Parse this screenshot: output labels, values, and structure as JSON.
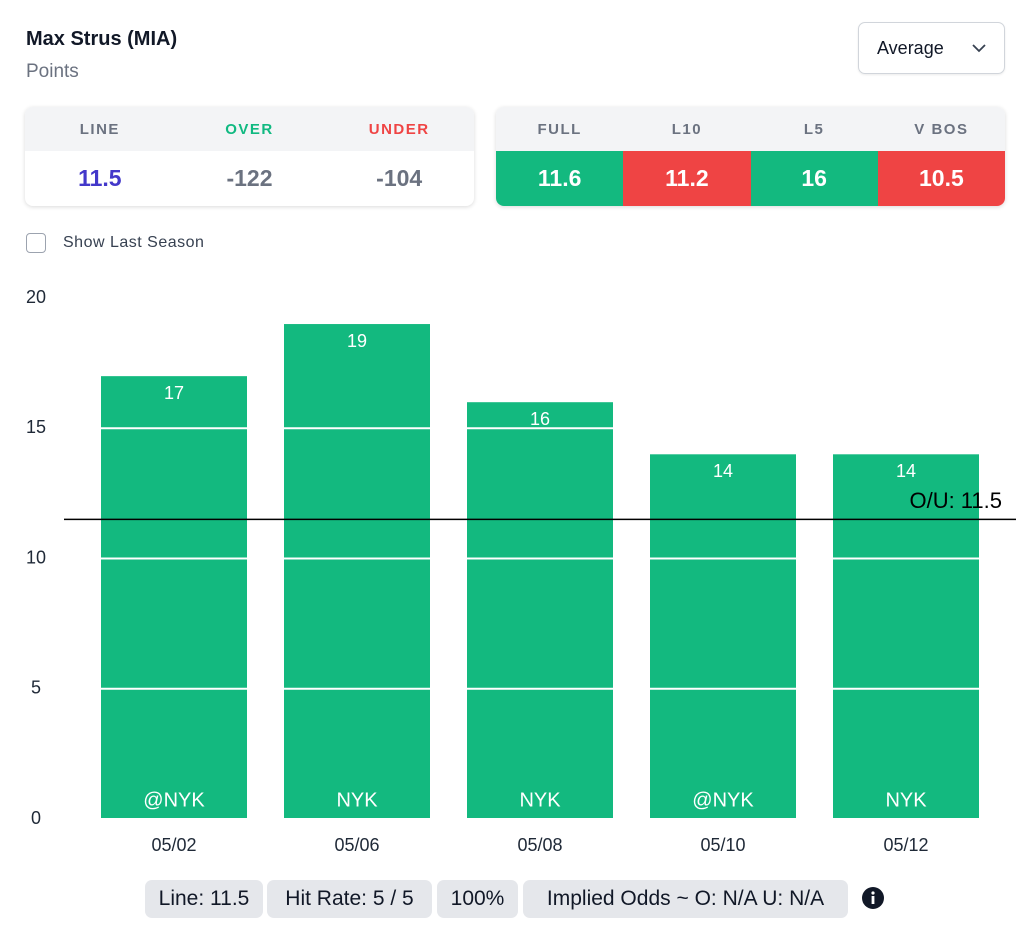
{
  "header": {
    "title": "Max Strus (MIA)",
    "subtitle": "Points",
    "dropdown": "Average"
  },
  "line_table": {
    "headers": [
      "LINE",
      "OVER",
      "UNDER"
    ],
    "header_colors": [
      "#6b7280",
      "#10b981",
      "#ef4444"
    ],
    "values": [
      "11.5",
      "-122",
      "-104"
    ],
    "value_colors": [
      "#4338ca",
      "#6b7280",
      "#6b7280"
    ]
  },
  "stats_table": {
    "headers": [
      "FULL",
      "L10",
      "L5",
      "V BOS"
    ],
    "values": [
      "11.6",
      "11.2",
      "16",
      "10.5"
    ],
    "cell_colors": [
      "#13b97f",
      "#ef4444",
      "#13b97f",
      "#ef4444"
    ]
  },
  "checkbox": {
    "label": "Show Last Season"
  },
  "chart_data": {
    "type": "bar",
    "categories": [
      "05/02",
      "05/06",
      "05/08",
      "05/10",
      "05/12"
    ],
    "values": [
      17,
      19,
      16,
      14,
      14
    ],
    "bar_labels": [
      "@NYK",
      "NYK",
      "NYK",
      "@NYK",
      "NYK"
    ],
    "color": "#13b97f",
    "ylim": [
      0,
      20
    ],
    "yticks": [
      0,
      5,
      10,
      15,
      20
    ],
    "grid": true,
    "reference_line": {
      "value": 11.5,
      "label": "O/U: 11.5"
    }
  },
  "footer": {
    "pills": [
      "Line: 11.5",
      "Hit Rate: 5 / 5",
      "100%",
      "Implied Odds ~ O: N/A U: N/A"
    ]
  }
}
